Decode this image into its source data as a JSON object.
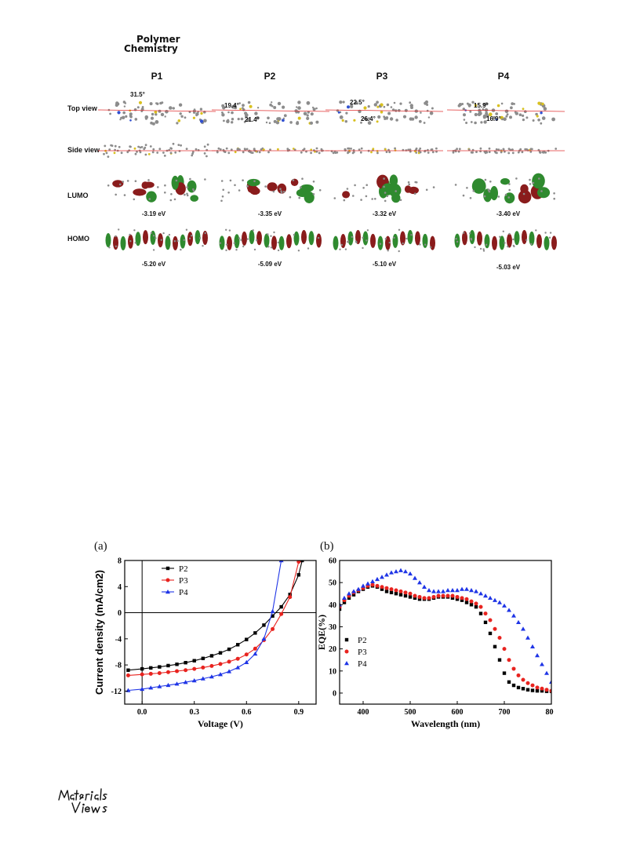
{
  "journal": {
    "line1": "Polymer",
    "line2": "Chemistry"
  },
  "figure1": {
    "columns": [
      "P1",
      "P2",
      "P3",
      "P4"
    ],
    "rows": [
      "Top view",
      "Side view",
      "LUMO",
      "HOMO"
    ],
    "dihedral_angles": {
      "P1": [
        "31.5°"
      ],
      "P2": [
        "19.4°",
        "21.4°"
      ],
      "P3": [
        "22.5°",
        "26.4°"
      ],
      "P4": [
        "15.9°",
        "16.9°"
      ]
    },
    "lumo": [
      "-3.19 eV",
      "-3.35 eV",
      "-3.32 eV",
      "-3.40 eV"
    ],
    "homo": [
      "-5.20 eV",
      "-5.09 eV",
      "-5.10 eV",
      "-5.03 eV"
    ],
    "colors": {
      "orbital_red": "#8a1c1c",
      "orbital_green": "#2f8a2f",
      "atom_gray": "#8c8c8c",
      "bond_line": "#e03030"
    }
  },
  "chart_data": [
    {
      "panel": "(a)",
      "type": "line",
      "xlabel": "Voltage (V)",
      "ylabel": "Current density (mA/cm2)",
      "xlim": [
        -0.1,
        1.0
      ],
      "ylim": [
        -14,
        8
      ],
      "xticks": [
        "0.0",
        "0.3",
        "0.6",
        "0.9"
      ],
      "yticks": [
        "-12",
        "-8",
        "-4",
        "0",
        "4",
        "8"
      ],
      "legend_position": "top-left",
      "series": [
        {
          "name": "P2",
          "color": "#000000",
          "marker": "square",
          "x": [
            -0.08,
            0.0,
            0.05,
            0.1,
            0.15,
            0.2,
            0.25,
            0.3,
            0.35,
            0.4,
            0.45,
            0.5,
            0.55,
            0.6,
            0.65,
            0.7,
            0.75,
            0.8,
            0.85,
            0.9,
            0.92
          ],
          "y": [
            -8.8,
            -8.6,
            -8.45,
            -8.3,
            -8.1,
            -7.9,
            -7.65,
            -7.35,
            -7.0,
            -6.6,
            -6.15,
            -5.6,
            -4.9,
            -4.1,
            -3.1,
            -1.9,
            -0.5,
            0.9,
            2.8,
            5.8,
            8.0
          ]
        },
        {
          "name": "P3",
          "color": "#e8231f",
          "marker": "circle",
          "x": [
            -0.08,
            0.0,
            0.05,
            0.1,
            0.15,
            0.2,
            0.25,
            0.3,
            0.35,
            0.4,
            0.45,
            0.5,
            0.55,
            0.6,
            0.65,
            0.7,
            0.75,
            0.8,
            0.85,
            0.9
          ],
          "y": [
            -9.6,
            -9.45,
            -9.35,
            -9.25,
            -9.1,
            -8.95,
            -8.8,
            -8.6,
            -8.4,
            -8.15,
            -7.85,
            -7.5,
            -7.05,
            -6.4,
            -5.5,
            -4.2,
            -2.5,
            -0.2,
            2.4,
            7.8
          ]
        },
        {
          "name": "P4",
          "color": "#1f35e6",
          "marker": "triangle",
          "x": [
            -0.08,
            0.0,
            0.05,
            0.1,
            0.15,
            0.2,
            0.25,
            0.3,
            0.35,
            0.4,
            0.45,
            0.5,
            0.55,
            0.6,
            0.65,
            0.7,
            0.75,
            0.8
          ],
          "y": [
            -11.9,
            -11.7,
            -11.5,
            -11.3,
            -11.1,
            -10.9,
            -10.65,
            -10.4,
            -10.1,
            -9.8,
            -9.45,
            -9.0,
            -8.4,
            -7.6,
            -6.3,
            -4.0,
            0.2,
            8.0
          ]
        }
      ]
    },
    {
      "panel": "(b)",
      "type": "scatter",
      "xlabel": "Wavelength (nm)",
      "ylabel": "EQE(%)",
      "xlim": [
        350,
        800
      ],
      "ylim": [
        -5,
        60
      ],
      "xticks": [
        "400",
        "500",
        "600",
        "700",
        "800"
      ],
      "yticks": [
        "0",
        "10",
        "20",
        "30",
        "40",
        "50",
        "60"
      ],
      "legend_position": "bottom-left",
      "series": [
        {
          "name": "P2",
          "color": "#000000",
          "marker": "square",
          "x": [
            350,
            360,
            370,
            380,
            390,
            400,
            410,
            420,
            430,
            440,
            450,
            460,
            470,
            480,
            490,
            500,
            510,
            520,
            530,
            540,
            550,
            560,
            570,
            580,
            590,
            600,
            610,
            620,
            630,
            640,
            650,
            660,
            670,
            680,
            690,
            700,
            710,
            720,
            730,
            740,
            750,
            760,
            770,
            780,
            790,
            800
          ],
          "y": [
            38,
            41,
            43,
            44.5,
            46,
            47,
            48,
            48.5,
            48,
            47,
            46,
            45.5,
            45,
            44.5,
            44,
            43.5,
            43,
            42.5,
            42.5,
            42.5,
            43,
            43.5,
            43.5,
            43.5,
            43,
            42.5,
            42,
            41,
            40,
            39,
            36,
            32,
            27,
            21,
            15,
            9,
            5,
            3.5,
            2.5,
            2,
            1.5,
            1.2,
            1,
            1,
            0.8,
            0.8
          ]
        },
        {
          "name": "P3",
          "color": "#e8231f",
          "marker": "circle",
          "x": [
            350,
            360,
            370,
            380,
            390,
            400,
            410,
            420,
            430,
            440,
            450,
            460,
            470,
            480,
            490,
            500,
            510,
            520,
            530,
            540,
            550,
            560,
            570,
            580,
            590,
            600,
            610,
            620,
            630,
            640,
            650,
            660,
            670,
            680,
            690,
            700,
            710,
            720,
            730,
            740,
            750,
            760,
            770,
            780,
            790,
            800
          ],
          "y": [
            39,
            42,
            44,
            45.5,
            46.5,
            47.5,
            48.5,
            49,
            48.5,
            48,
            47.5,
            47,
            46.5,
            46,
            45.5,
            45,
            44,
            43.5,
            43,
            43,
            43.5,
            44,
            44,
            44,
            44,
            43.5,
            43,
            42.5,
            41.5,
            40.5,
            39,
            36,
            33,
            29,
            25,
            20,
            15,
            11,
            8,
            6,
            4.5,
            3.5,
            2.5,
            2,
            1.5,
            1
          ]
        },
        {
          "name": "P4",
          "color": "#1f35e6",
          "marker": "triangle",
          "x": [
            350,
            360,
            370,
            380,
            390,
            400,
            410,
            420,
            430,
            440,
            450,
            460,
            470,
            480,
            490,
            500,
            510,
            520,
            530,
            540,
            550,
            560,
            570,
            580,
            590,
            600,
            610,
            620,
            630,
            640,
            650,
            660,
            670,
            680,
            690,
            700,
            710,
            720,
            730,
            740,
            750,
            760,
            770,
            780,
            790,
            800
          ],
          "y": [
            40,
            43,
            45,
            46,
            47,
            48.5,
            49.5,
            50.5,
            51.5,
            52.5,
            53.5,
            54.5,
            55,
            55.5,
            55,
            54,
            52,
            50,
            48,
            46.5,
            46,
            46,
            46,
            46.5,
            46.5,
            46.5,
            47,
            47,
            46.5,
            46,
            45,
            44,
            43,
            42,
            41,
            39.5,
            37.5,
            35,
            32,
            29,
            25,
            21,
            17,
            13,
            9,
            5
          ]
        }
      ]
    }
  ]
}
